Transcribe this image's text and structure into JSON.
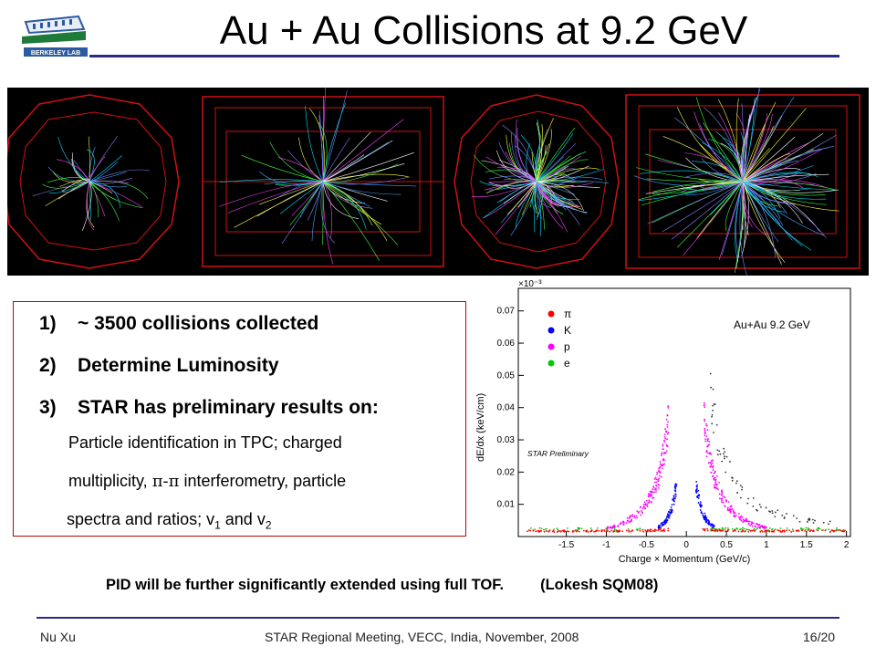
{
  "header": {
    "title": "Au + Au Collisions at 9.2 GeV",
    "logo_text": "BERKELEY LAB"
  },
  "summary": {
    "items": [
      {
        "number": "1)",
        "text": "~ 3500 collisions collected"
      },
      {
        "number": "2)",
        "text": "Determine Luminosity"
      },
      {
        "number": "3)",
        "text": "STAR has preliminary results on:"
      }
    ],
    "details": {
      "line1": "Particle identification in TPC; charged",
      "line2_pre": "multiplicity, ",
      "line2_sym": "π-π",
      "line2_post": " interferometry, particle",
      "line3_pre": "spectra and ratios; v",
      "sub1": "1",
      "line3_mid": " and v",
      "sub2": "2"
    }
  },
  "chart_data": {
    "type": "scatter",
    "title": "Au+Au 9.2 GeV",
    "annotation": "STAR Preliminary",
    "xlabel": "Charge × Momentum (GeV/c)",
    "ylabel": "dE/dx (keV/cm)",
    "y_multiplier": "×10⁻³",
    "xlim": [
      -2.1,
      2.05
    ],
    "ylim": [
      0.0,
      0.077
    ],
    "x_ticks": [
      "-1.5",
      "-1",
      "-0.5",
      "0",
      "0.5",
      "1",
      "1.5",
      "2"
    ],
    "y_ticks": [
      "0.01",
      "0.02",
      "0.03",
      "0.04",
      "0.05",
      "0.06",
      "0.07"
    ],
    "legend": [
      {
        "name": "π",
        "color": "#ff0000"
      },
      {
        "name": "K",
        "color": "#0000ff"
      },
      {
        "name": "p",
        "color": "#ff00ff"
      },
      {
        "name": "e",
        "color": "#00cc00"
      }
    ],
    "legend_position": "top-left",
    "series": [
      {
        "name": "π",
        "color": "#ff0000",
        "band": [
          [
            -2.0,
            0.0017
          ],
          [
            -1.5,
            0.0017
          ],
          [
            -1.0,
            0.0017
          ],
          [
            -0.5,
            0.0018
          ],
          [
            -0.2,
            0.0022
          ],
          [
            0.2,
            0.0022
          ],
          [
            0.5,
            0.0018
          ],
          [
            1.0,
            0.0017
          ],
          [
            1.5,
            0.0017
          ],
          [
            2.0,
            0.0017
          ]
        ]
      },
      {
        "name": "K",
        "color": "#0000ff",
        "band": [
          [
            -0.35,
            0.0028
          ],
          [
            -0.25,
            0.005
          ],
          [
            -0.18,
            0.009
          ],
          [
            -0.12,
            0.016
          ],
          [
            0.12,
            0.016
          ],
          [
            0.18,
            0.009
          ],
          [
            0.25,
            0.005
          ],
          [
            0.35,
            0.0028
          ]
        ]
      },
      {
        "name": "p",
        "color": "#ff00ff",
        "band": [
          [
            -1.0,
            0.0025
          ],
          [
            -0.8,
            0.004
          ],
          [
            -0.6,
            0.007
          ],
          [
            -0.45,
            0.012
          ],
          [
            -0.35,
            0.018
          ],
          [
            -0.28,
            0.026
          ],
          [
            -0.22,
            0.036
          ],
          [
            0.22,
            0.036
          ],
          [
            0.28,
            0.026
          ],
          [
            0.35,
            0.018
          ],
          [
            0.45,
            0.012
          ],
          [
            0.6,
            0.007
          ],
          [
            0.8,
            0.004
          ],
          [
            1.0,
            0.0025
          ]
        ]
      },
      {
        "name": "e",
        "color": "#00cc00",
        "band": [
          [
            -2.0,
            0.0023
          ],
          [
            -0.5,
            0.0023
          ],
          [
            0.3,
            0.0023
          ],
          [
            1.0,
            0.0023
          ],
          [
            2.0,
            0.0023
          ]
        ]
      },
      {
        "name": "",
        "color": "#333333",
        "band": [
          [
            0.3,
            0.045
          ],
          [
            0.4,
            0.03
          ],
          [
            0.6,
            0.016
          ],
          [
            0.9,
            0.009
          ],
          [
            1.3,
            0.006
          ],
          [
            1.8,
            0.004
          ]
        ]
      }
    ]
  },
  "note": {
    "text": "PID will be further significantly extended using full TOF.",
    "ref": "(Lokesh SQM08)"
  },
  "footer": {
    "author": "Nu Xu",
    "event": "STAR Regional Meeting, VECC, India, November, 2008",
    "page": "16/20"
  }
}
